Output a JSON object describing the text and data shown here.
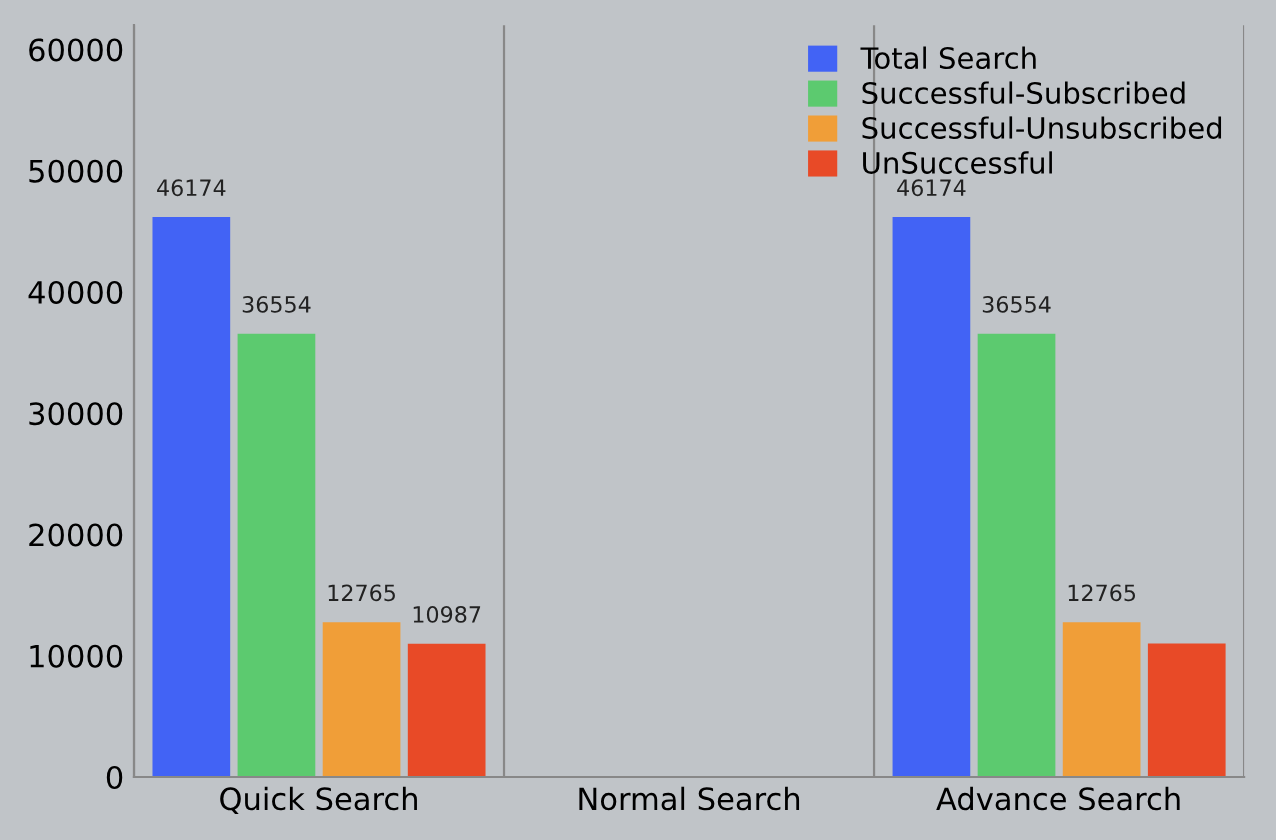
{
  "chart_data": {
    "type": "bar",
    "categories": [
      "Quick Search",
      "Normal Search",
      "Advance Search"
    ],
    "series": [
      {
        "name": "Total Search",
        "color": "#4263f5",
        "values": [
          46174,
          null,
          46174
        ],
        "value_labels": [
          "46174",
          null,
          "46174"
        ]
      },
      {
        "name": "Successful-Subscribed",
        "color": "#5cca6f",
        "values": [
          36554,
          null,
          36554
        ],
        "value_labels": [
          "36554",
          null,
          "36554"
        ]
      },
      {
        "name": "Successful-Unsubscribed",
        "color": "#f09e38",
        "values": [
          12765,
          null,
          12765
        ],
        "value_labels": [
          "12765",
          null,
          "12765"
        ]
      },
      {
        "name": "UnSuccessful",
        "color": "#e84a27",
        "values": [
          10987,
          null,
          11000
        ],
        "value_labels": [
          "10987",
          null,
          null
        ]
      }
    ],
    "ylim": [
      0,
      62000
    ],
    "yticks": [
      0,
      10000,
      20000,
      30000,
      40000,
      50000,
      60000
    ],
    "grid": "x",
    "legend": "top right"
  }
}
